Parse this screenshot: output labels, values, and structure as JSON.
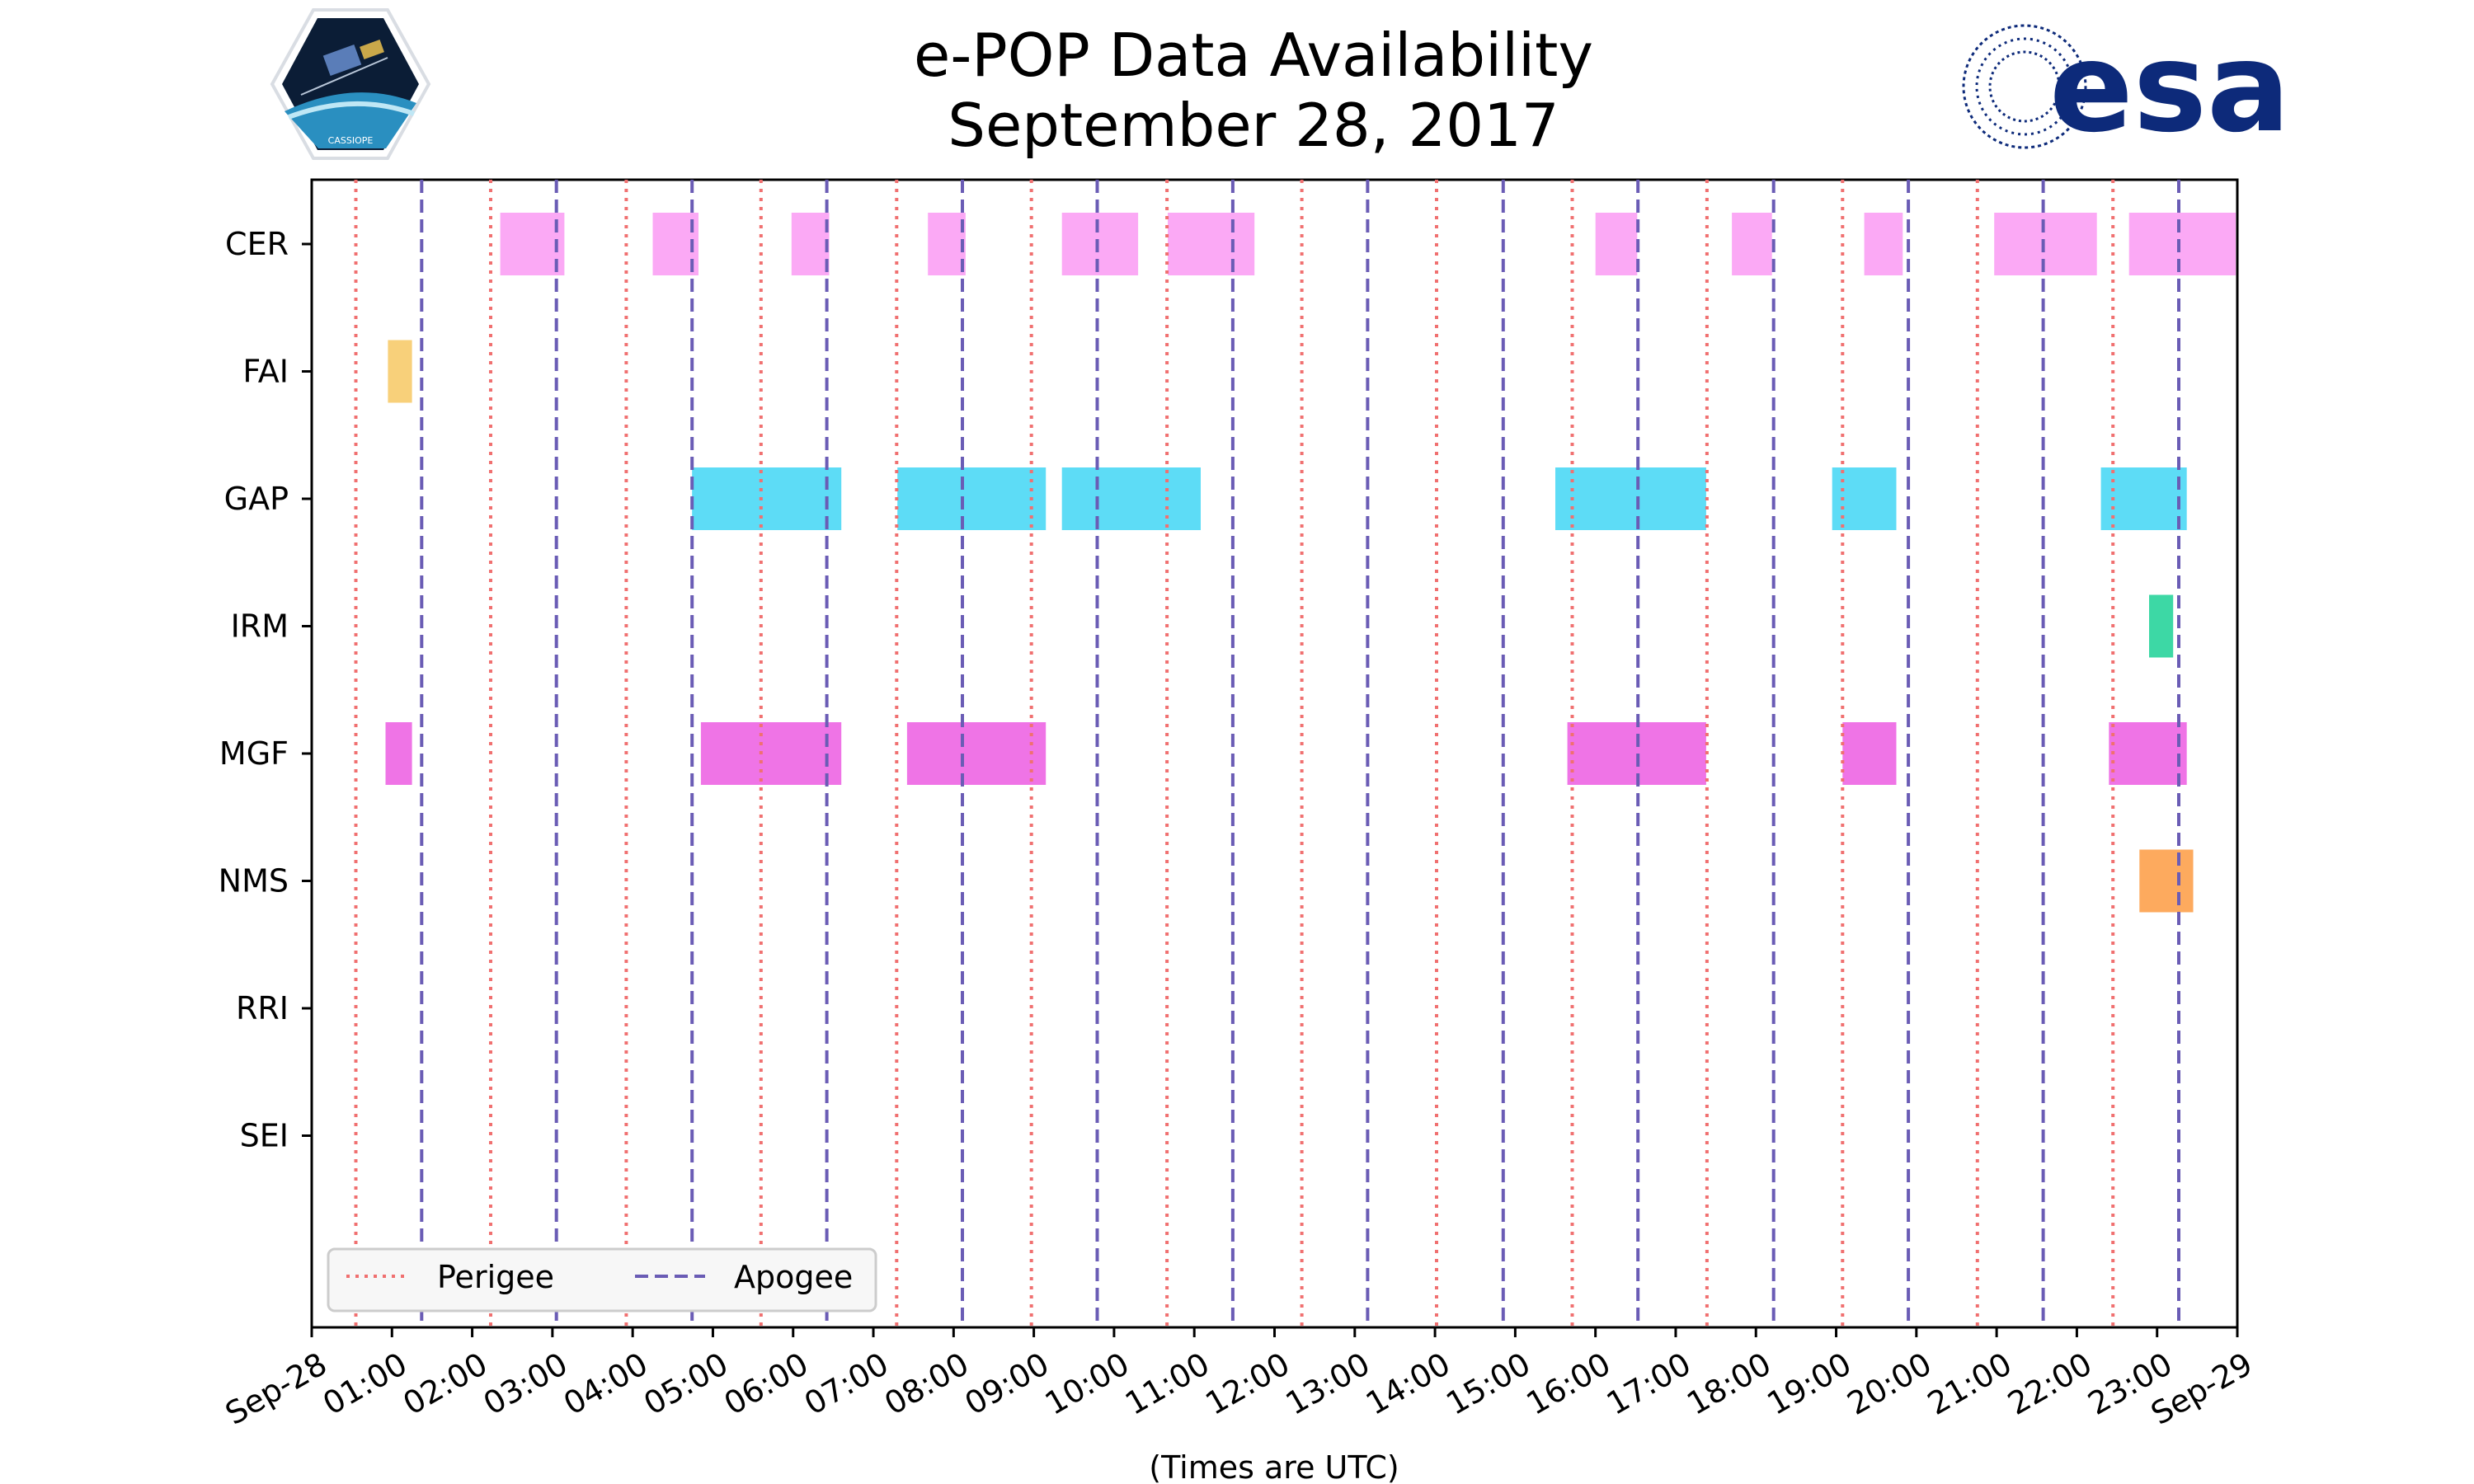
{
  "logos": {
    "left_text": "CASSIOPE",
    "right_text": "esa"
  },
  "chart_data": {
    "type": "timeline",
    "title": "e-POP Data Availability",
    "subtitle": "September 28, 2017",
    "xlabel": "(Times are UTC)",
    "x_range_hours": [
      0,
      24
    ],
    "x_tick_labels": [
      "Sep-28",
      "01:00",
      "02:00",
      "03:00",
      "04:00",
      "05:00",
      "06:00",
      "07:00",
      "08:00",
      "09:00",
      "10:00",
      "11:00",
      "12:00",
      "13:00",
      "14:00",
      "15:00",
      "16:00",
      "17:00",
      "18:00",
      "19:00",
      "20:00",
      "21:00",
      "22:00",
      "23:00",
      "Sep-29"
    ],
    "categories": [
      "CER",
      "FAI",
      "GAP",
      "IRM",
      "MGF",
      "NMS",
      "RRI",
      "SEI"
    ],
    "perigee_hours": [
      0.55,
      2.23,
      3.92,
      5.6,
      7.29,
      8.97,
      10.66,
      12.34,
      14.02,
      15.71,
      17.39,
      19.08,
      20.76,
      22.45
    ],
    "apogee_hours": [
      1.37,
      3.05,
      4.74,
      6.42,
      8.11,
      9.79,
      11.48,
      13.16,
      14.85,
      16.53,
      18.22,
      19.9,
      21.58,
      23.27
    ],
    "legend": [
      {
        "name": "Perigee",
        "style": "dotted",
        "color": "#f07070"
      },
      {
        "name": "Apogee",
        "style": "dashed",
        "color": "#6a5cb5"
      }
    ],
    "series": [
      {
        "name": "CER",
        "color": "#fba9f5",
        "intervals": [
          [
            2.35,
            3.15
          ],
          [
            4.25,
            4.82
          ],
          [
            5.98,
            6.45
          ],
          [
            7.68,
            8.15
          ],
          [
            9.35,
            10.3
          ],
          [
            10.67,
            11.75
          ],
          [
            16.0,
            16.52
          ],
          [
            17.7,
            18.2
          ],
          [
            19.35,
            19.83
          ],
          [
            20.97,
            22.25
          ],
          [
            22.65,
            23.98
          ]
        ]
      },
      {
        "name": "FAI",
        "color": "#f8d07a",
        "intervals": [
          [
            0.95,
            1.25
          ]
        ]
      },
      {
        "name": "GAP",
        "color": "#5ddcf6",
        "intervals": [
          [
            4.74,
            6.6
          ],
          [
            7.3,
            9.15
          ],
          [
            9.35,
            11.08
          ],
          [
            15.5,
            17.38
          ],
          [
            18.95,
            19.75
          ],
          [
            22.3,
            23.37
          ]
        ]
      },
      {
        "name": "IRM",
        "color": "#3dd8a5",
        "intervals": [
          [
            22.9,
            23.2
          ]
        ]
      },
      {
        "name": "MGF",
        "color": "#ef74e6",
        "intervals": [
          [
            0.92,
            1.25
          ],
          [
            4.85,
            6.6
          ],
          [
            7.42,
            9.15
          ],
          [
            15.65,
            17.38
          ],
          [
            19.08,
            19.75
          ],
          [
            22.4,
            23.37
          ]
        ]
      },
      {
        "name": "NMS",
        "color": "#fdaa5e",
        "intervals": [
          [
            22.78,
            23.45
          ]
        ]
      },
      {
        "name": "RRI",
        "color": "#cccccc",
        "intervals": []
      },
      {
        "name": "SEI",
        "color": "#cccccc",
        "intervals": []
      }
    ]
  }
}
